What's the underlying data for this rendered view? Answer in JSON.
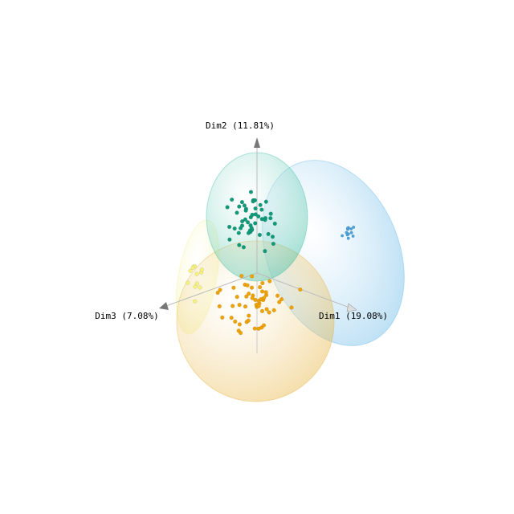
{
  "chart_data": {
    "type": "scatter",
    "projection": "3d",
    "axes": {
      "x": {
        "label": "Dim1 (19.08%)"
      },
      "y": {
        "label": "Dim2 (11.81%)"
      },
      "z": {
        "label": "Dim3 (7.08%)"
      }
    },
    "grid": false,
    "legend": "none",
    "ellipsoids": true,
    "groups": [
      {
        "color": "#5bb3e6",
        "point_color": "#4aa3dd",
        "point_count": 12
      },
      {
        "color": "#2fb89a",
        "point_color": "#0f9a7a",
        "point_count": 50
      },
      {
        "color": "#e5ad2f",
        "point_color": "#f0a300",
        "point_count": 55
      },
      {
        "color": "#f2f08a",
        "point_color": "#f7f27a",
        "point_count": 12
      }
    ]
  }
}
